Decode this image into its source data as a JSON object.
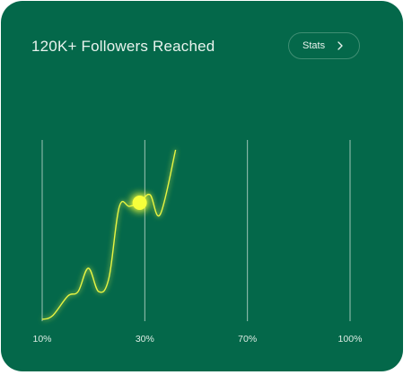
{
  "header": {
    "title": "120K+ Followers Reached",
    "stats_label": "Stats"
  },
  "icons": {
    "stats_chevron": "chevron-right-icon"
  },
  "colors": {
    "card_background": "#04684a",
    "line": "#e8f542",
    "highlight_dot": "#f6ff3a",
    "gridline": "#b8d6c8",
    "text": "#e9f3ee"
  },
  "chart_data": {
    "type": "line",
    "x_ticks": [
      "10%",
      "30%",
      "70%",
      "100%"
    ],
    "grid": "vertical",
    "highlighted_point_index": 9,
    "series": [
      {
        "x": [
          0.0,
          0.1,
          0.25,
          0.35,
          0.45,
          0.55,
          0.65,
          0.75,
          0.85,
          0.95,
          1.05,
          1.15,
          1.3
        ],
        "values": [
          0,
          4,
          26,
          31,
          57,
          31,
          46,
          125,
          126,
          130,
          139,
          117,
          189
        ]
      }
    ]
  }
}
